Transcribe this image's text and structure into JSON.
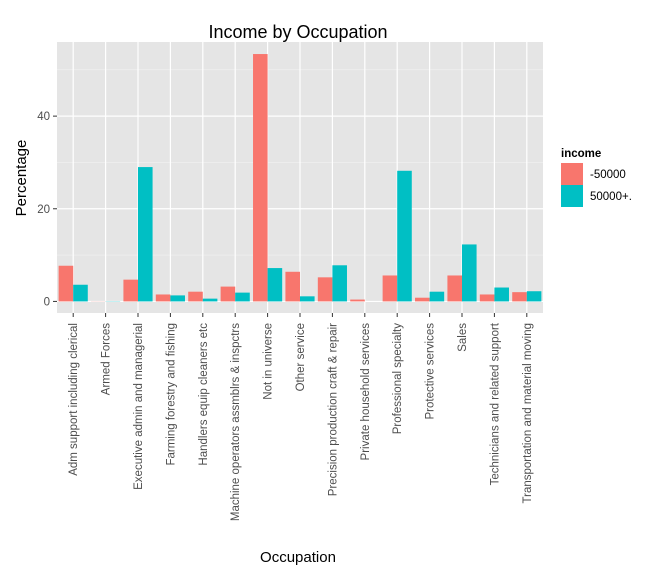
{
  "chart_data": {
    "type": "bar",
    "title": "Income by Occupation",
    "xlabel": "Occupation",
    "ylabel": "Percentage",
    "ylim": [
      -2.5,
      56
    ],
    "yticks": [
      0,
      20,
      40
    ],
    "grid": true,
    "legend_title": "income",
    "legend_position": "right",
    "categories": [
      "Adm support including clerical",
      "Armed Forces",
      "Executive admin and managerial",
      "Farming forestry and fishing",
      "Handlers equip cleaners etc",
      "Machine operators assmblrs & inspctrs",
      "Not in universe",
      "Other service",
      "Precision production craft & repair",
      "Private household services",
      "Professional specialty",
      "Protective services",
      "Sales",
      "Technicians and related support",
      "Transportation and material moving"
    ],
    "series": [
      {
        "name": "-50000",
        "color": "#F8766D",
        "values": [
          7.7,
          0.03,
          4.7,
          1.5,
          2.1,
          3.2,
          53.4,
          6.4,
          5.2,
          0.4,
          5.6,
          0.8,
          5.6,
          1.5,
          2.0
        ]
      },
      {
        "name": "50000+.",
        "color": "#00BFC4",
        "values": [
          3.6,
          0.05,
          29.0,
          1.3,
          0.6,
          1.9,
          7.2,
          1.1,
          7.8,
          0.0,
          28.2,
          2.1,
          12.3,
          3.0,
          2.2
        ]
      }
    ]
  }
}
